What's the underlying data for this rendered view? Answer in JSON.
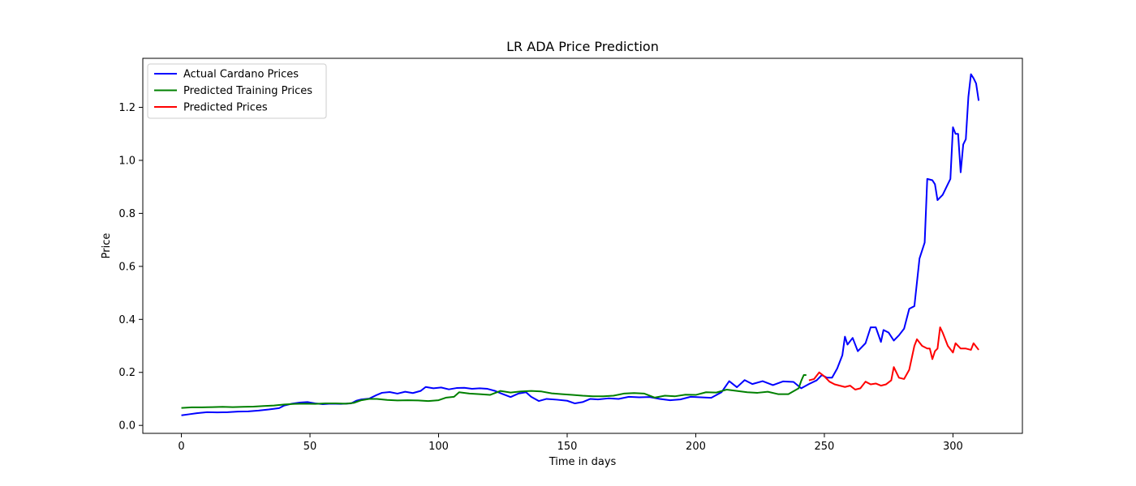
{
  "chart_data": {
    "type": "line",
    "title": "LR ADA Price Prediction",
    "xlabel": "Time in days",
    "ylabel": "Price",
    "xlim": [
      -15,
      327
    ],
    "ylim": [
      -0.03,
      1.385
    ],
    "xticks": [
      0,
      50,
      100,
      150,
      200,
      250,
      300
    ],
    "yticks": [
      0.0,
      0.2,
      0.4,
      0.6,
      0.8,
      1.0,
      1.2
    ],
    "ytick_labels": [
      "0.0",
      "0.2",
      "0.4",
      "0.6",
      "0.8",
      "1.0",
      "1.2"
    ],
    "grid": false,
    "legend_position": "top-left",
    "series": [
      {
        "name": "Actual Cardano Prices",
        "color": "#0000ff",
        "points": [
          [
            0,
            0.038
          ],
          [
            3,
            0.042
          ],
          [
            6,
            0.046
          ],
          [
            10,
            0.05
          ],
          [
            14,
            0.049
          ],
          [
            18,
            0.05
          ],
          [
            22,
            0.052
          ],
          [
            26,
            0.053
          ],
          [
            30,
            0.056
          ],
          [
            34,
            0.06
          ],
          [
            38,
            0.065
          ],
          [
            40,
            0.075
          ],
          [
            43,
            0.082
          ],
          [
            46,
            0.086
          ],
          [
            49,
            0.088
          ],
          [
            52,
            0.083
          ],
          [
            55,
            0.08
          ],
          [
            58,
            0.082
          ],
          [
            62,
            0.081
          ],
          [
            66,
            0.083
          ],
          [
            68,
            0.093
          ],
          [
            70,
            0.098
          ],
          [
            73,
            0.101
          ],
          [
            76,
            0.115
          ],
          [
            78,
            0.123
          ],
          [
            81,
            0.126
          ],
          [
            84,
            0.12
          ],
          [
            87,
            0.127
          ],
          [
            90,
            0.122
          ],
          [
            93,
            0.13
          ],
          [
            95,
            0.145
          ],
          [
            98,
            0.14
          ],
          [
            101,
            0.143
          ],
          [
            104,
            0.136
          ],
          [
            107,
            0.141
          ],
          [
            110,
            0.142
          ],
          [
            113,
            0.138
          ],
          [
            116,
            0.14
          ],
          [
            119,
            0.138
          ],
          [
            122,
            0.13
          ],
          [
            125,
            0.118
          ],
          [
            128,
            0.107
          ],
          [
            131,
            0.12
          ],
          [
            134,
            0.125
          ],
          [
            136,
            0.108
          ],
          [
            139,
            0.092
          ],
          [
            142,
            0.1
          ],
          [
            146,
            0.097
          ],
          [
            150,
            0.093
          ],
          [
            153,
            0.083
          ],
          [
            156,
            0.088
          ],
          [
            159,
            0.1
          ],
          [
            162,
            0.098
          ],
          [
            166,
            0.102
          ],
          [
            170,
            0.1
          ],
          [
            174,
            0.108
          ],
          [
            178,
            0.106
          ],
          [
            182,
            0.107
          ],
          [
            186,
            0.1
          ],
          [
            190,
            0.095
          ],
          [
            194,
            0.098
          ],
          [
            198,
            0.108
          ],
          [
            202,
            0.106
          ],
          [
            206,
            0.104
          ],
          [
            210,
            0.125
          ],
          [
            213,
            0.167
          ],
          [
            216,
            0.144
          ],
          [
            219,
            0.171
          ],
          [
            222,
            0.156
          ],
          [
            226,
            0.167
          ],
          [
            230,
            0.152
          ],
          [
            234,
            0.166
          ],
          [
            238,
            0.164
          ],
          [
            241,
            0.14
          ],
          [
            244,
            0.156
          ],
          [
            247,
            0.17
          ],
          [
            249,
            0.19
          ],
          [
            251,
            0.18
          ],
          [
            253,
            0.18
          ],
          [
            255,
            0.215
          ],
          [
            257,
            0.265
          ],
          [
            258,
            0.335
          ],
          [
            259,
            0.305
          ],
          [
            261,
            0.33
          ],
          [
            263,
            0.28
          ],
          [
            266,
            0.31
          ],
          [
            268,
            0.37
          ],
          [
            270,
            0.37
          ],
          [
            272,
            0.315
          ],
          [
            273,
            0.36
          ],
          [
            275,
            0.35
          ],
          [
            277,
            0.32
          ],
          [
            279,
            0.34
          ],
          [
            281,
            0.365
          ],
          [
            283,
            0.44
          ],
          [
            285,
            0.45
          ],
          [
            287,
            0.63
          ],
          [
            289,
            0.69
          ],
          [
            290,
            0.93
          ],
          [
            292,
            0.925
          ],
          [
            293,
            0.91
          ],
          [
            294,
            0.85
          ],
          [
            296,
            0.87
          ],
          [
            298,
            0.91
          ],
          [
            299,
            0.93
          ],
          [
            300,
            1.125
          ],
          [
            301,
            1.1
          ],
          [
            302,
            1.1
          ],
          [
            303,
            0.955
          ],
          [
            304,
            1.06
          ],
          [
            305,
            1.08
          ],
          [
            306,
            1.24
          ],
          [
            307,
            1.325
          ],
          [
            308,
            1.31
          ],
          [
            309,
            1.29
          ],
          [
            310,
            1.225
          ]
        ]
      },
      {
        "name": "Predicted Training Prices",
        "color": "#008000",
        "points": [
          [
            0,
            0.066
          ],
          [
            4,
            0.068
          ],
          [
            8,
            0.068
          ],
          [
            12,
            0.069
          ],
          [
            16,
            0.07
          ],
          [
            20,
            0.069
          ],
          [
            24,
            0.07
          ],
          [
            28,
            0.071
          ],
          [
            32,
            0.073
          ],
          [
            36,
            0.075
          ],
          [
            40,
            0.079
          ],
          [
            44,
            0.081
          ],
          [
            48,
            0.082
          ],
          [
            52,
            0.081
          ],
          [
            56,
            0.083
          ],
          [
            60,
            0.083
          ],
          [
            64,
            0.082
          ],
          [
            67,
            0.085
          ],
          [
            70,
            0.095
          ],
          [
            73,
            0.1
          ],
          [
            76,
            0.1
          ],
          [
            80,
            0.096
          ],
          [
            84,
            0.094
          ],
          [
            88,
            0.095
          ],
          [
            92,
            0.094
          ],
          [
            96,
            0.092
          ],
          [
            100,
            0.095
          ],
          [
            103,
            0.105
          ],
          [
            106,
            0.108
          ],
          [
            108,
            0.125
          ],
          [
            112,
            0.12
          ],
          [
            116,
            0.118
          ],
          [
            120,
            0.115
          ],
          [
            124,
            0.13
          ],
          [
            128,
            0.124
          ],
          [
            132,
            0.128
          ],
          [
            136,
            0.13
          ],
          [
            140,
            0.128
          ],
          [
            144,
            0.121
          ],
          [
            148,
            0.118
          ],
          [
            152,
            0.115
          ],
          [
            156,
            0.112
          ],
          [
            160,
            0.11
          ],
          [
            164,
            0.11
          ],
          [
            168,
            0.112
          ],
          [
            172,
            0.12
          ],
          [
            176,
            0.122
          ],
          [
            180,
            0.12
          ],
          [
            184,
            0.105
          ],
          [
            188,
            0.112
          ],
          [
            192,
            0.11
          ],
          [
            196,
            0.116
          ],
          [
            200,
            0.115
          ],
          [
            204,
            0.125
          ],
          [
            208,
            0.124
          ],
          [
            212,
            0.135
          ],
          [
            216,
            0.13
          ],
          [
            220,
            0.125
          ],
          [
            224,
            0.123
          ],
          [
            228,
            0.127
          ],
          [
            232,
            0.118
          ],
          [
            236,
            0.118
          ],
          [
            240,
            0.14
          ],
          [
            241,
            0.168
          ],
          [
            242,
            0.19
          ],
          [
            243,
            0.19
          ]
        ]
      },
      {
        "name": "Predicted Prices",
        "color": "#ff0000",
        "points": [
          [
            244,
            0.17
          ],
          [
            246,
            0.175
          ],
          [
            248,
            0.2
          ],
          [
            250,
            0.185
          ],
          [
            252,
            0.165
          ],
          [
            254,
            0.155
          ],
          [
            256,
            0.15
          ],
          [
            258,
            0.145
          ],
          [
            260,
            0.15
          ],
          [
            262,
            0.135
          ],
          [
            264,
            0.14
          ],
          [
            266,
            0.165
          ],
          [
            268,
            0.155
          ],
          [
            270,
            0.158
          ],
          [
            272,
            0.15
          ],
          [
            274,
            0.155
          ],
          [
            276,
            0.17
          ],
          [
            277,
            0.22
          ],
          [
            279,
            0.18
          ],
          [
            281,
            0.175
          ],
          [
            283,
            0.21
          ],
          [
            285,
            0.3
          ],
          [
            286,
            0.325
          ],
          [
            288,
            0.3
          ],
          [
            290,
            0.29
          ],
          [
            291,
            0.29
          ],
          [
            292,
            0.25
          ],
          [
            293,
            0.28
          ],
          [
            294,
            0.29
          ],
          [
            295,
            0.37
          ],
          [
            296,
            0.35
          ],
          [
            298,
            0.3
          ],
          [
            300,
            0.275
          ],
          [
            301,
            0.31
          ],
          [
            303,
            0.29
          ],
          [
            305,
            0.29
          ],
          [
            307,
            0.285
          ],
          [
            308,
            0.31
          ],
          [
            310,
            0.285
          ]
        ]
      }
    ]
  }
}
